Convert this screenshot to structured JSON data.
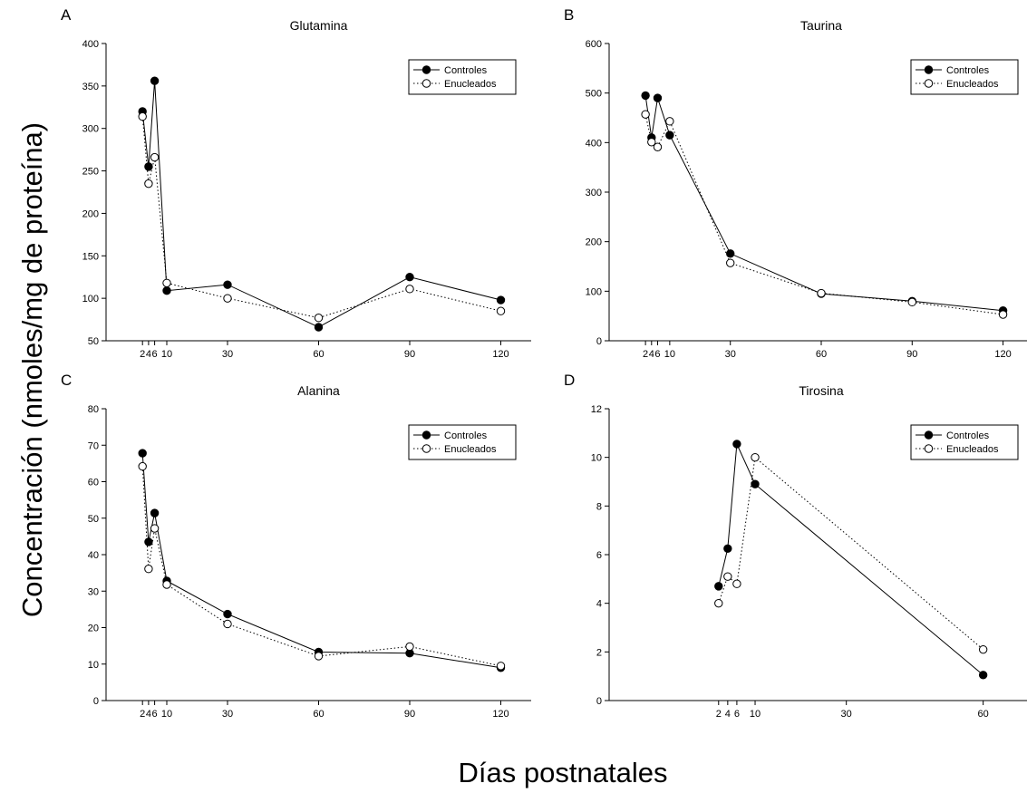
{
  "figure": {
    "ylabel": "Concentración (nmoles/mg de proteína)",
    "xlabel": "Días postnatales"
  },
  "chart_data": [
    {
      "type": "line",
      "panel": "A",
      "title": "Glutamina",
      "xlabel": "",
      "ylabel": "",
      "xlim": [
        -10,
        130
      ],
      "ylim": [
        50,
        400
      ],
      "xticks": [
        2,
        4,
        6,
        10,
        30,
        60,
        90,
        120
      ],
      "xtick_labels": [
        "2",
        "4",
        "6",
        "10",
        "30",
        "60",
        "90",
        "120"
      ],
      "yticks": [
        50,
        100,
        150,
        200,
        250,
        300,
        350,
        400
      ],
      "legend_position": "top-right",
      "series": [
        {
          "name": "Controles",
          "marker": "filled-circle",
          "line": "solid",
          "x": [
            2,
            4,
            6,
            10,
            30,
            60,
            90,
            120
          ],
          "y": [
            320,
            255,
            356,
            109,
            116,
            66,
            125,
            98
          ]
        },
        {
          "name": "Enucleados",
          "marker": "open-circle",
          "line": "dotted",
          "x": [
            2,
            4,
            6,
            10,
            30,
            60,
            90,
            120
          ],
          "y": [
            314,
            235,
            266,
            118,
            100,
            77,
            111,
            85
          ]
        }
      ]
    },
    {
      "type": "line",
      "panel": "B",
      "title": "Taurina",
      "xlabel": "",
      "ylabel": "",
      "xlim": [
        -10,
        130
      ],
      "ylim": [
        0,
        600
      ],
      "xticks": [
        2,
        4,
        6,
        10,
        30,
        60,
        90,
        120
      ],
      "xtick_labels": [
        "2",
        "4",
        "6",
        "10",
        "30",
        "60",
        "90",
        "120"
      ],
      "yticks": [
        0,
        100,
        200,
        300,
        400,
        500,
        600
      ],
      "legend_position": "top-right",
      "series": [
        {
          "name": "Controles",
          "marker": "filled-circle",
          "line": "solid",
          "x": [
            2,
            4,
            6,
            10,
            30,
            60,
            90,
            120
          ],
          "y": [
            495,
            410,
            490,
            415,
            176,
            95,
            80,
            61
          ]
        },
        {
          "name": "Enucleados",
          "marker": "open-circle",
          "line": "dotted",
          "x": [
            2,
            4,
            6,
            10,
            30,
            60,
            90,
            120
          ],
          "y": [
            457,
            401,
            391,
            443,
            157,
            96,
            78,
            53
          ]
        }
      ]
    },
    {
      "type": "line",
      "panel": "C",
      "title": "Alanina",
      "xlabel": "",
      "ylabel": "",
      "xlim": [
        -10,
        130
      ],
      "ylim": [
        0,
        80
      ],
      "xticks": [
        2,
        4,
        6,
        10,
        30,
        60,
        90,
        120
      ],
      "xtick_labels": [
        "2",
        "4",
        "6",
        "10",
        "30",
        "60",
        "90",
        "120"
      ],
      "yticks": [
        0,
        10,
        20,
        30,
        40,
        50,
        60,
        70,
        80
      ],
      "legend_position": "top-right",
      "series": [
        {
          "name": "Controles",
          "marker": "filled-circle",
          "line": "solid",
          "x": [
            2,
            4,
            6,
            10,
            30,
            60,
            90,
            120
          ],
          "y": [
            67.8,
            43.5,
            51.4,
            32.8,
            23.7,
            13.3,
            13.0,
            9.0
          ]
        },
        {
          "name": "Enucleados",
          "marker": "open-circle",
          "line": "dotted",
          "x": [
            2,
            4,
            6,
            10,
            30,
            60,
            90,
            120
          ],
          "y": [
            64.2,
            36.1,
            47.2,
            31.8,
            21.0,
            12.2,
            14.8,
            9.5
          ]
        }
      ]
    },
    {
      "type": "line",
      "panel": "D",
      "title": "Tirosina",
      "xlabel": "",
      "ylabel": "",
      "xlim": [
        -22,
        71
      ],
      "ylim": [
        0,
        12
      ],
      "xticks": [
        2,
        4,
        6,
        10,
        30,
        60
      ],
      "xtick_labels": [
        "2",
        "4",
        "6",
        "10",
        "30",
        "60"
      ],
      "yticks": [
        0,
        2,
        4,
        6,
        8,
        10,
        12
      ],
      "legend_position": "top-right",
      "series": [
        {
          "name": "Controles",
          "marker": "filled-circle",
          "line": "solid",
          "x": [
            2,
            4,
            6,
            10,
            60
          ],
          "y": [
            4.7,
            6.25,
            10.55,
            8.9,
            1.05
          ]
        },
        {
          "name": "Enucleados",
          "marker": "open-circle",
          "line": "dotted",
          "x": [
            2,
            4,
            6,
            10,
            60
          ],
          "y": [
            4.0,
            5.1,
            4.8,
            10.0,
            2.1
          ]
        }
      ]
    }
  ]
}
